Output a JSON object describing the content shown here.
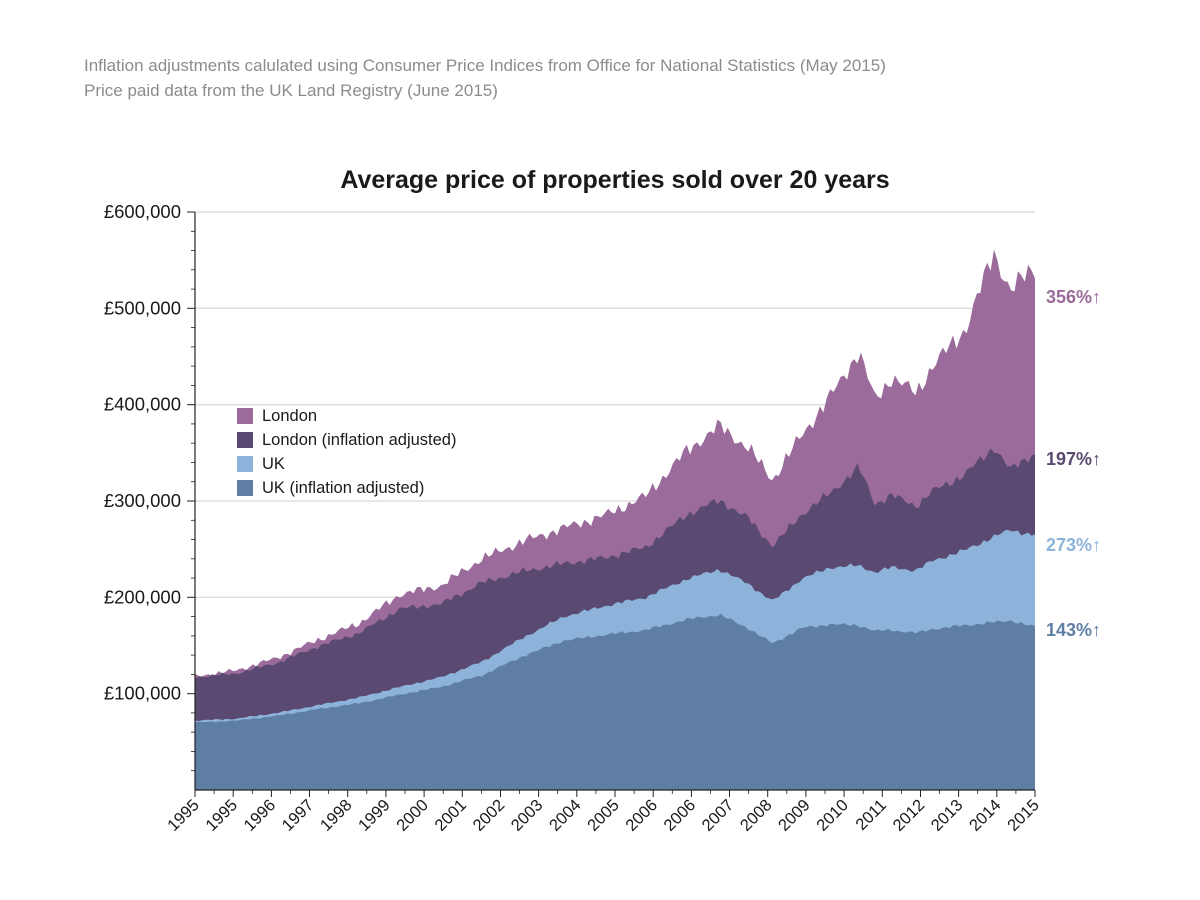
{
  "note": {
    "line1": "Inflation adjustments calulated using Consumer Price Indices from Office for National Statistics (May 2015)",
    "line2": "Price paid data from the UK Land Registry (June 2015)"
  },
  "chart_data": {
    "type": "area",
    "title": "Average price of properties sold over 20 years",
    "xlabel": "",
    "ylabel": "",
    "ylim": [
      0,
      600000
    ],
    "x_domain": [
      1995,
      2015.5
    ],
    "grid": "horizontal",
    "legend_position": "upper-left-inside",
    "y_ticks": [
      {
        "value": 100000,
        "label": "£100,000"
      },
      {
        "value": 200000,
        "label": "£200,000"
      },
      {
        "value": 300000,
        "label": "£300,000"
      },
      {
        "value": 400000,
        "label": "£400,000"
      },
      {
        "value": 500000,
        "label": "£500,000"
      },
      {
        "value": 600000,
        "label": "£600,000"
      }
    ],
    "x_tick_labels": [
      "1995",
      "1995",
      "1996",
      "1997",
      "1998",
      "1999",
      "2000",
      "2001",
      "2002",
      "2003",
      "2004",
      "2005",
      "2006",
      "2006",
      "2007",
      "2008",
      "2009",
      "2010",
      "2011",
      "2012",
      "2013",
      "2014",
      "2015"
    ],
    "series": [
      {
        "name": "London",
        "color": "#9a6b9b",
        "pct_change_label": "356%↑",
        "points": [
          [
            1995,
            118000
          ],
          [
            1996,
            124000
          ],
          [
            1997,
            137000
          ],
          [
            1998,
            156000
          ],
          [
            1999,
            173000
          ],
          [
            2000,
            203000
          ],
          [
            2001,
            212000
          ],
          [
            2002,
            240000
          ],
          [
            2003,
            258000
          ],
          [
            2004,
            272000
          ],
          [
            2005,
            285000
          ],
          [
            2006,
            305000
          ],
          [
            2007,
            352000
          ],
          [
            2007.8,
            378000
          ],
          [
            2008.5,
            355000
          ],
          [
            2009.1,
            322000
          ],
          [
            2009.8,
            368000
          ],
          [
            2010.5,
            408000
          ],
          [
            2011.2,
            455000
          ],
          [
            2011.6,
            405000
          ],
          [
            2012,
            428000
          ],
          [
            2012.6,
            412000
          ],
          [
            2013,
            440000
          ],
          [
            2013.8,
            478000
          ],
          [
            2014.5,
            558000
          ],
          [
            2014.9,
            518000
          ],
          [
            2015.4,
            540000
          ]
        ]
      },
      {
        "name": "London (inflation adjusted)",
        "color": "#5a4971",
        "pct_change_label": "197%↑",
        "points": [
          [
            1995,
            117000
          ],
          [
            1996,
            121000
          ],
          [
            1997,
            132000
          ],
          [
            1998,
            149000
          ],
          [
            1999,
            163000
          ],
          [
            2000,
            188000
          ],
          [
            2001,
            193000
          ],
          [
            2002,
            215000
          ],
          [
            2003,
            227000
          ],
          [
            2004,
            235000
          ],
          [
            2005,
            241000
          ],
          [
            2006,
            252000
          ],
          [
            2007,
            286000
          ],
          [
            2007.8,
            301000
          ],
          [
            2008.5,
            282000
          ],
          [
            2009.1,
            253000
          ],
          [
            2009.8,
            286000
          ],
          [
            2010.5,
            308000
          ],
          [
            2011.2,
            335000
          ],
          [
            2011.6,
            297000
          ],
          [
            2012,
            306000
          ],
          [
            2012.6,
            295000
          ],
          [
            2013,
            310000
          ],
          [
            2013.8,
            328000
          ],
          [
            2014.5,
            356000
          ],
          [
            2014.9,
            332000
          ],
          [
            2015.4,
            348000
          ]
        ]
      },
      {
        "name": "UK",
        "color": "#8db3da",
        "pct_change_label": "273%↑",
        "points": [
          [
            1995,
            72000
          ],
          [
            1996,
            74000
          ],
          [
            1997,
            80000
          ],
          [
            1998,
            88000
          ],
          [
            1999,
            96000
          ],
          [
            2000,
            107000
          ],
          [
            2001,
            117000
          ],
          [
            2002,
            133000
          ],
          [
            2003,
            158000
          ],
          [
            2004,
            180000
          ],
          [
            2005,
            191000
          ],
          [
            2006,
            200000
          ],
          [
            2007,
            219000
          ],
          [
            2007.8,
            229000
          ],
          [
            2008.5,
            214000
          ],
          [
            2009.1,
            196000
          ],
          [
            2009.8,
            219000
          ],
          [
            2010.5,
            231000
          ],
          [
            2011.2,
            233000
          ],
          [
            2011.6,
            226000
          ],
          [
            2012,
            231000
          ],
          [
            2012.6,
            228000
          ],
          [
            2013,
            238000
          ],
          [
            2013.8,
            249000
          ],
          [
            2014.5,
            263000
          ],
          [
            2014.9,
            270000
          ],
          [
            2015.4,
            265000
          ]
        ]
      },
      {
        "name": "UK (inflation adjusted)",
        "color": "#5e7ea4",
        "pct_change_label": "143%↑",
        "points": [
          [
            1995,
            70000
          ],
          [
            1996,
            72000
          ],
          [
            1997,
            77000
          ],
          [
            1998,
            84000
          ],
          [
            1999,
            90000
          ],
          [
            2000,
            99000
          ],
          [
            2001,
            107000
          ],
          [
            2002,
            119000
          ],
          [
            2003,
            139000
          ],
          [
            2004,
            155000
          ],
          [
            2005,
            161000
          ],
          [
            2006,
            166000
          ],
          [
            2007,
            177000
          ],
          [
            2007.8,
            182000
          ],
          [
            2008.5,
            168000
          ],
          [
            2009.1,
            152000
          ],
          [
            2009.8,
            168000
          ],
          [
            2010.5,
            172000
          ],
          [
            2011.2,
            171000
          ],
          [
            2011.6,
            165000
          ],
          [
            2012,
            166000
          ],
          [
            2012.6,
            163000
          ],
          [
            2013,
            167000
          ],
          [
            2013.8,
            171000
          ],
          [
            2014.5,
            174000
          ],
          [
            2014.9,
            176000
          ],
          [
            2015.4,
            170000
          ]
        ]
      }
    ],
    "annotations": [
      {
        "text": "356%↑",
        "color": "#9a6b9b",
        "at_value": 510000
      },
      {
        "text": "197%↑",
        "color": "#5a4971",
        "at_value": 342000
      },
      {
        "text": "273%↑",
        "color": "#8db3da",
        "at_value": 252000
      },
      {
        "text": "143%↑",
        "color": "#5e7ea4",
        "at_value": 164000
      }
    ]
  }
}
